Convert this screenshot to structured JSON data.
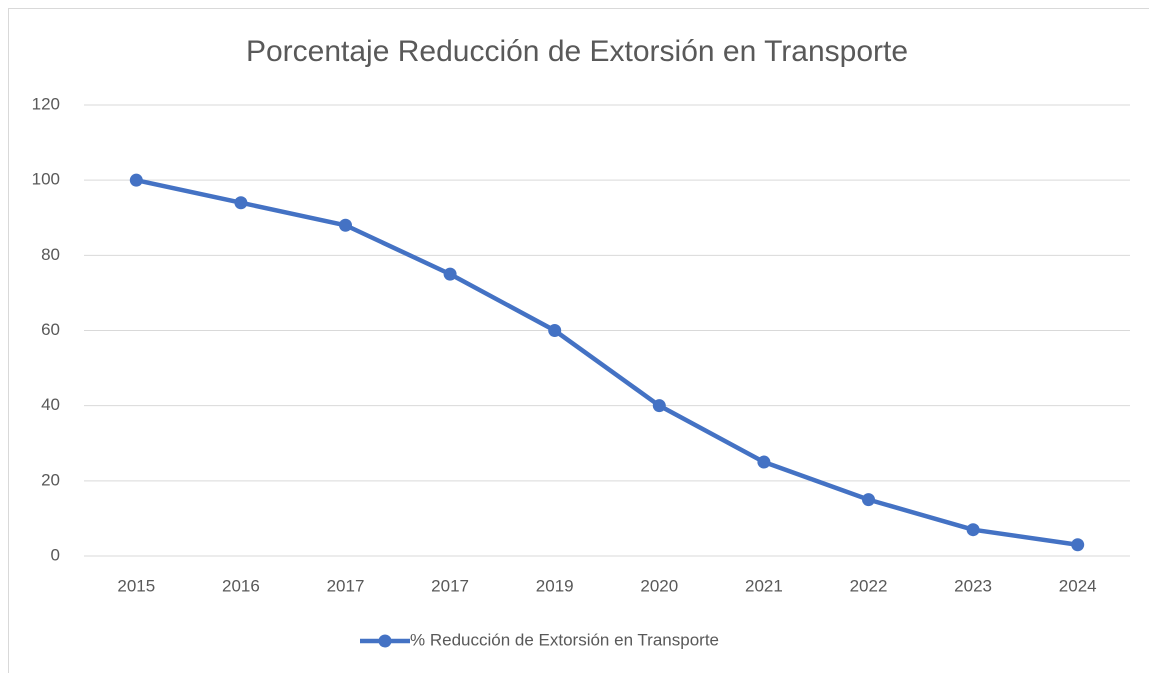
{
  "chart_data": {
    "type": "line",
    "title": "Porcentaje Reducción de Extorsión en Transporte",
    "categories": [
      "2015",
      "2016",
      "2017",
      "2017",
      "2019",
      "2020",
      "2021",
      "2022",
      "2023",
      "2024"
    ],
    "series": [
      {
        "name": "% Reducción de Extorsión en Transporte",
        "color": "#4472c4",
        "values": [
          100,
          94,
          88,
          75,
          60,
          40,
          25,
          15,
          7,
          3
        ]
      }
    ],
    "ylim": [
      0,
      120
    ],
    "yticks": [
      0,
      20,
      40,
      60,
      80,
      100,
      120
    ],
    "grid": true,
    "legend": "bottom"
  }
}
